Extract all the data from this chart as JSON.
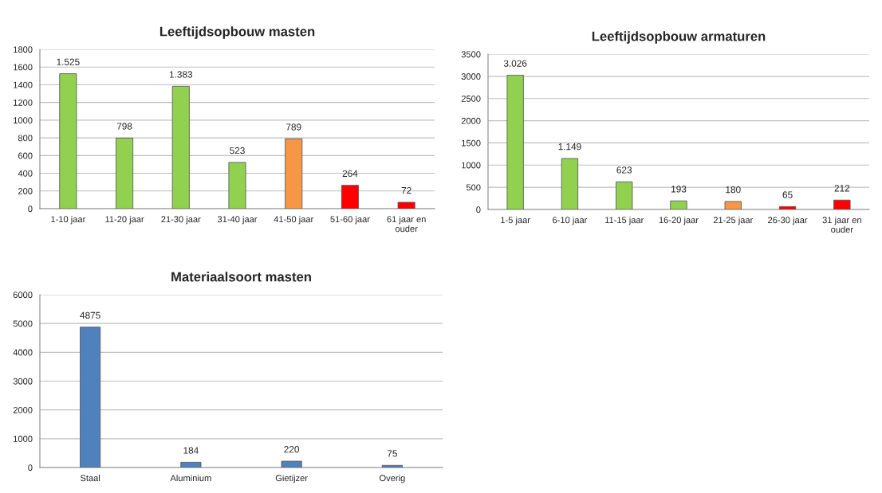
{
  "chart_data": [
    {
      "type": "bar",
      "title": "Leeftijdsopbouw masten",
      "categories": [
        "1-10 jaar",
        "11-20 jaar",
        "21-30 jaar",
        "31-40 jaar",
        "41-50 jaar",
        "51-60 jaar",
        "61 jaar en\nouder"
      ],
      "values": [
        1525,
        798,
        1383,
        523,
        789,
        264,
        72
      ],
      "colors": [
        "#92d050",
        "#92d050",
        "#92d050",
        "#92d050",
        "#f79646",
        "#ff0000",
        "#ff0000"
      ],
      "value_labels": [
        "1.525",
        "798",
        "1.383",
        "523",
        "789",
        "264",
        "72"
      ],
      "ylim": [
        0,
        1800
      ],
      "yticks": [
        0,
        200,
        400,
        600,
        800,
        1000,
        1200,
        1400,
        1600,
        1800
      ],
      "grid": "y"
    },
    {
      "type": "bar",
      "title": "Leeftijdsopbouw armaturen",
      "categories": [
        "1-5 jaar",
        "6-10 jaar",
        "11-15 jaar",
        "16-20 jaar",
        "21-25 jaar",
        "26-30 jaar",
        "31 jaar en\nouder"
      ],
      "values": [
        3026,
        1149,
        623,
        193,
        180,
        65,
        212
      ],
      "colors": [
        "#92d050",
        "#92d050",
        "#92d050",
        "#92d050",
        "#f79646",
        "#ff0000",
        "#ff0000"
      ],
      "value_labels": [
        "3.026",
        "1.149",
        "623",
        "193",
        "180",
        "65",
        "212"
      ],
      "ylim": [
        0,
        3500
      ],
      "yticks": [
        0,
        500,
        1000,
        1500,
        2000,
        2500,
        3000,
        3500
      ],
      "grid": "y"
    },
    {
      "type": "bar",
      "title": "Materiaalsoort masten",
      "categories": [
        "Staal",
        "Aluminium",
        "Gietijzer",
        "Overig"
      ],
      "values": [
        4875,
        184,
        220,
        75
      ],
      "colors": [
        "#4f81bd",
        "#4f81bd",
        "#4f81bd",
        "#4f81bd"
      ],
      "data_labels": true,
      "ylim": [
        0,
        6000
      ],
      "yticks": [
        0,
        1000,
        2000,
        3000,
        4000,
        5000,
        6000
      ],
      "grid": "y"
    }
  ]
}
